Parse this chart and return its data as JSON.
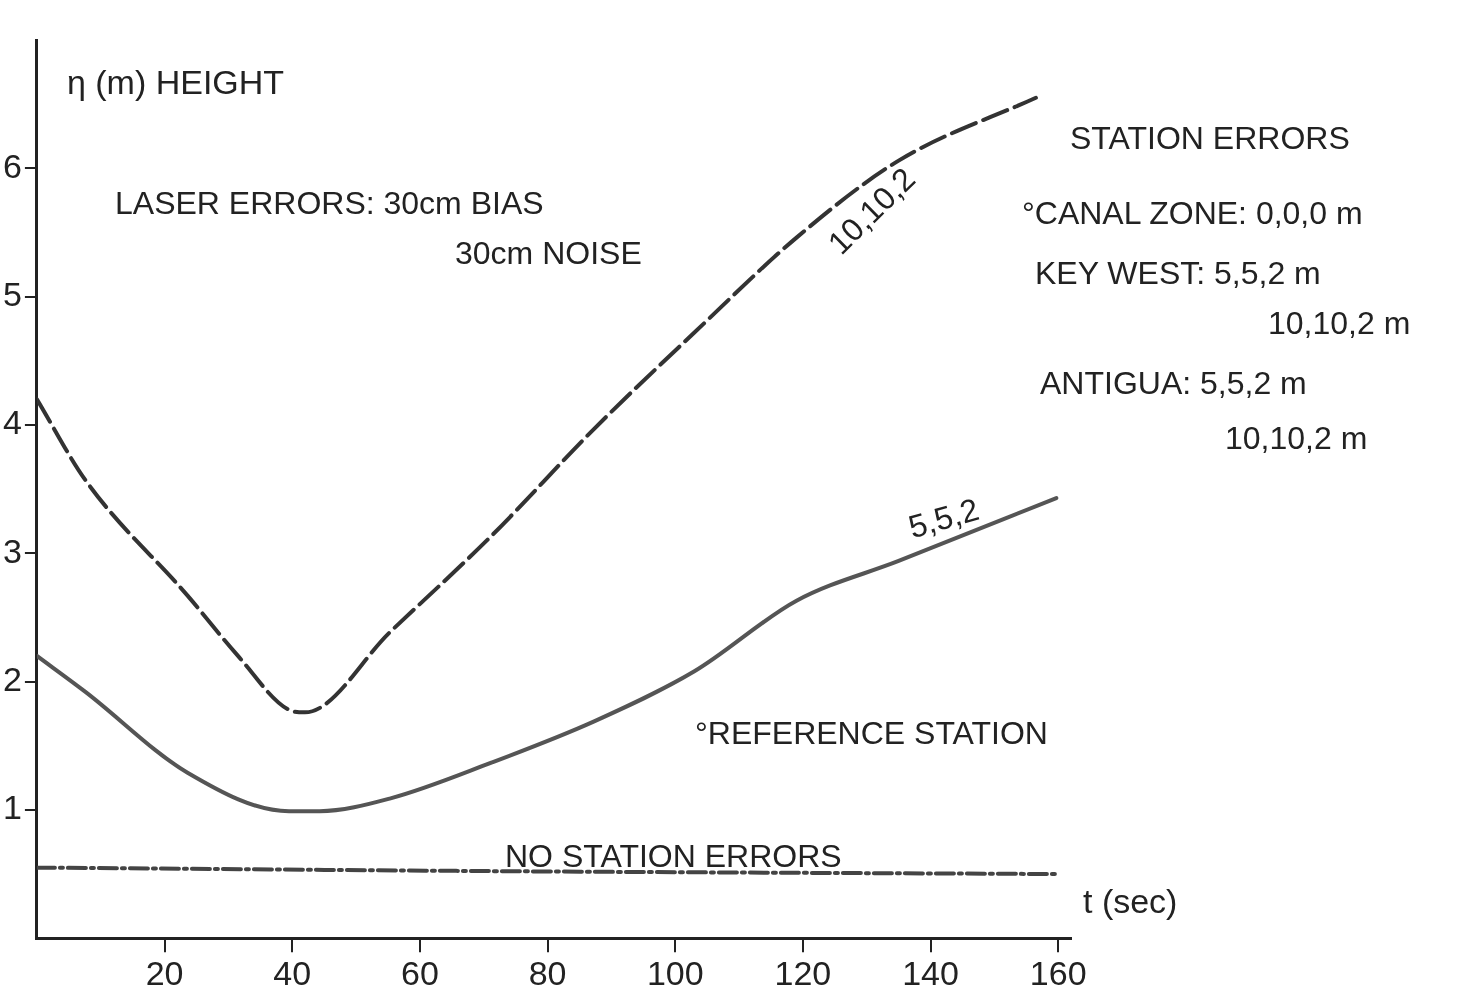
{
  "chart_data": {
    "type": "line",
    "xlabel": "t (sec)",
    "ylabel": "η (m) HEIGHT",
    "xlim": [
      0,
      162
    ],
    "ylim": [
      0,
      7
    ],
    "xticks": [
      20,
      40,
      60,
      80,
      100,
      120,
      140,
      160
    ],
    "yticks": [
      1,
      2,
      3,
      4,
      5,
      6
    ],
    "grid": false,
    "legend": false,
    "marker": "none",
    "series": [
      {
        "name": "10,10,2",
        "color": "#333333",
        "line_style": "dashed",
        "x": [
          0,
          7.6,
          23.6,
          31.5,
          39.5,
          42,
          55.4,
          71.3,
          87.3,
          103,
          119,
          135,
          156.5
        ],
        "values": [
          4.2,
          3.57,
          2.67,
          2.2,
          1.78,
          1.76,
          2.39,
          3.14,
          3.97,
          4.72,
          5.46,
          6.06,
          6.55
        ]
      },
      {
        "name": "5,5,2",
        "color": "#555555",
        "line_style": "solid",
        "x": [
          0,
          7.6,
          23.6,
          39.5,
          44.3,
          55.4,
          71.3,
          87.3,
          103,
          119,
          135,
          159.7
        ],
        "values": [
          2.2,
          1.92,
          1.29,
          0.99,
          0.99,
          1.09,
          1.37,
          1.69,
          2.08,
          2.63,
          2.94,
          3.43
        ]
      },
      {
        "name": "NO STATION ERRORS",
        "color": "#444444",
        "line_style": "dotted",
        "x": [
          0,
          80,
          159.7
        ],
        "values": [
          0.55,
          0.52,
          0.5
        ]
      }
    ],
    "annotations": [
      "LASER ERRORS: 30cm BIAS",
      "30cm NOISE",
      "STATION ERRORS",
      "°CANAL ZONE: 0,0,0 m",
      "KEY WEST: 5,5,2 m",
      "10,10,2 m",
      "ANTIGUA: 5,5,2 m",
      "10,10,2 m",
      "°REFERENCE STATION"
    ]
  }
}
